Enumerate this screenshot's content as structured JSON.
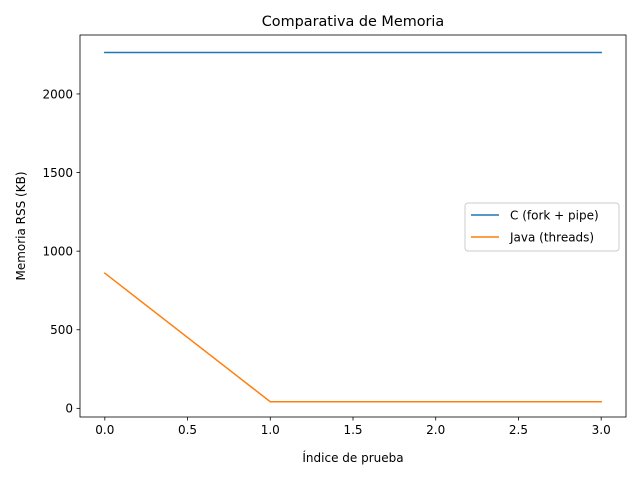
{
  "chart_data": {
    "type": "line",
    "title": "Comparativa de Memoria",
    "xlabel": "Índice de prueba",
    "ylabel": "Memoria RSS (KB)",
    "x": [
      0,
      1,
      2,
      3
    ],
    "xlim": [
      -0.15,
      3.15
    ],
    "ylim": [
      -55,
      2375
    ],
    "xticks": [
      0,
      0.5,
      1,
      1.5,
      2,
      2.5,
      3
    ],
    "xtick_labels": [
      "0.0",
      "0.5",
      "1.0",
      "1.5",
      "2.0",
      "2.5",
      "3.0"
    ],
    "yticks": [
      0,
      500,
      1000,
      1500,
      2000
    ],
    "ytick_labels": [
      "0",
      "500",
      "1000",
      "1500",
      "2000"
    ],
    "grid": false,
    "legend_position": "center-right",
    "series": [
      {
        "name": "C (fork + pipe)",
        "color": "#1f77b4",
        "values": [
          2264,
          2264,
          2264,
          2264
        ]
      },
      {
        "name": "Java (threads)",
        "color": "#ff7f0e",
        "values": [
          860,
          42,
          42,
          42
        ]
      }
    ]
  }
}
